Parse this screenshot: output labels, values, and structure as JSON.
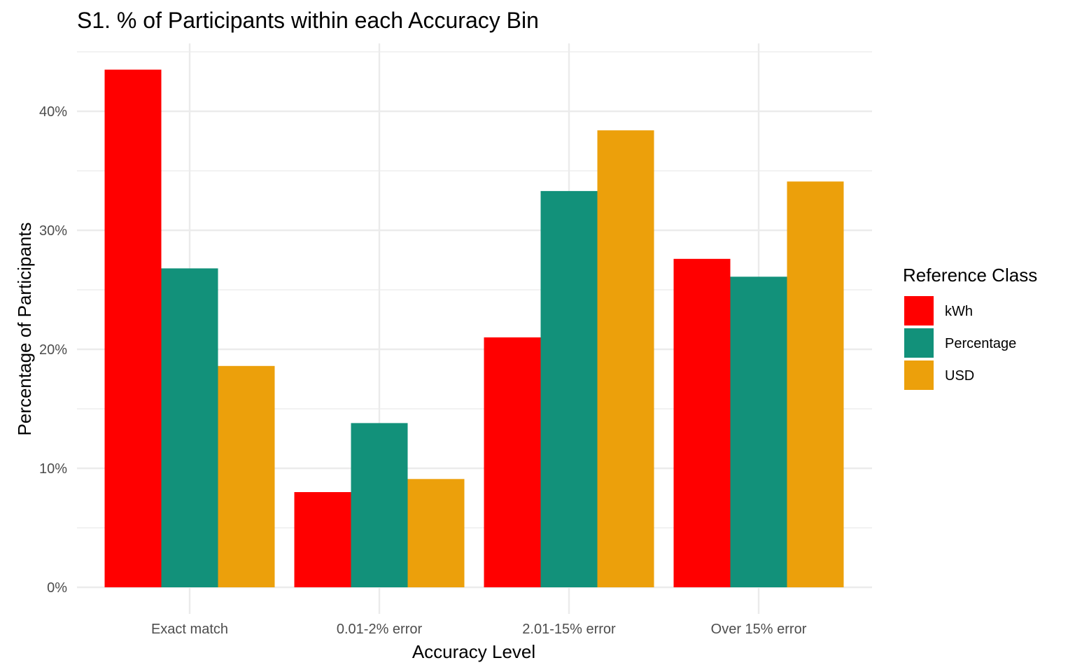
{
  "chart_data": {
    "type": "bar",
    "title": "S1. % of Participants within each Accuracy Bin",
    "xlabel": "Accuracy Level",
    "ylabel": "Percentage of Participants",
    "categories": [
      "Exact match",
      "0.01-2% error",
      "2.01-15% error",
      "Over 15% error"
    ],
    "series": [
      {
        "name": "kWh",
        "color": "#FF0000",
        "values": [
          43.5,
          8.0,
          21.0,
          27.6
        ]
      },
      {
        "name": "Percentage",
        "color": "#12917A",
        "values": [
          26.8,
          13.8,
          33.3,
          26.1
        ]
      },
      {
        "name": "USD",
        "color": "#ECA00B",
        "values": [
          18.6,
          9.1,
          38.4,
          34.1
        ]
      }
    ],
    "ylim": [
      0,
      46
    ],
    "yticks": [
      0,
      10,
      20,
      30,
      40
    ],
    "ytick_labels": [
      "0%",
      "10%",
      "20%",
      "30%",
      "40%"
    ],
    "grid": true,
    "legend": {
      "title": "Reference Class",
      "placement": "right"
    }
  }
}
